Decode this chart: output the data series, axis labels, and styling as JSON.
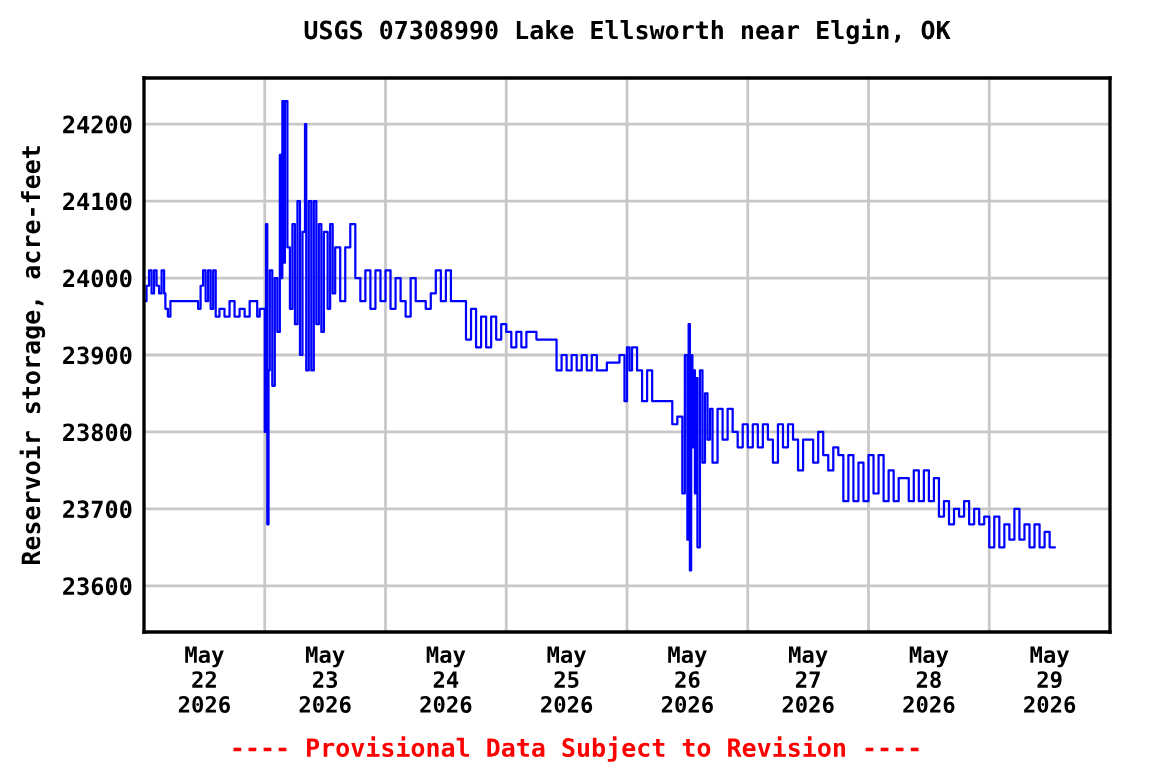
{
  "chart_data": {
    "type": "step",
    "title": "USGS 07308990 Lake Ellsworth near Elgin, OK",
    "ylabel": "Reservoir storage, acre-feet",
    "annotations": [
      "---- Provisional Data Subject to Revision ----"
    ],
    "x": [
      "2026-05-22T00:00",
      "2026-05-22T00:30",
      "2026-05-22T01:00",
      "2026-05-22T01:30",
      "2026-05-22T02:00",
      "2026-05-22T02:30",
      "2026-05-22T03:00",
      "2026-05-22T03:30",
      "2026-05-22T04:00",
      "2026-05-22T04:15",
      "2026-05-22T04:45",
      "2026-05-22T05:15",
      "2026-05-22T08:00",
      "2026-05-22T10:45",
      "2026-05-22T11:15",
      "2026-05-22T11:45",
      "2026-05-22T12:15",
      "2026-05-22T12:45",
      "2026-05-22T13:15",
      "2026-05-22T13:45",
      "2026-05-22T14:15",
      "2026-05-22T15:00",
      "2026-05-22T16:00",
      "2026-05-22T17:00",
      "2026-05-22T18:00",
      "2026-05-22T19:00",
      "2026-05-22T20:00",
      "2026-05-22T21:00",
      "2026-05-22T22:30",
      "2026-05-22T23:00",
      "2026-05-23T00:00",
      "2026-05-23T00:15",
      "2026-05-23T00:30",
      "2026-05-23T00:45",
      "2026-05-23T01:00",
      "2026-05-23T01:30",
      "2026-05-23T02:00",
      "2026-05-23T02:30",
      "2026-05-23T03:00",
      "2026-05-23T03:15",
      "2026-05-23T03:30",
      "2026-05-23T03:45",
      "2026-05-23T04:00",
      "2026-05-23T04:30",
      "2026-05-23T05:00",
      "2026-05-23T05:30",
      "2026-05-23T06:00",
      "2026-05-23T06:30",
      "2026-05-23T07:00",
      "2026-05-23T07:30",
      "2026-05-23T08:00",
      "2026-05-23T08:15",
      "2026-05-23T08:45",
      "2026-05-23T09:15",
      "2026-05-23T09:45",
      "2026-05-23T10:15",
      "2026-05-23T10:45",
      "2026-05-23T11:15",
      "2026-05-23T11:45",
      "2026-05-23T12:30",
      "2026-05-23T13:00",
      "2026-05-23T13:30",
      "2026-05-23T14:00",
      "2026-05-23T15:00",
      "2026-05-23T16:00",
      "2026-05-23T17:00",
      "2026-05-23T18:00",
      "2026-05-23T19:00",
      "2026-05-23T20:00",
      "2026-05-23T21:00",
      "2026-05-23T22:00",
      "2026-05-23T23:00",
      "2026-05-24T00:00",
      "2026-05-24T01:00",
      "2026-05-24T02:00",
      "2026-05-24T03:00",
      "2026-05-24T04:00",
      "2026-05-24T05:00",
      "2026-05-24T06:00",
      "2026-05-24T08:00",
      "2026-05-24T09:00",
      "2026-05-24T10:00",
      "2026-05-24T11:00",
      "2026-05-24T12:00",
      "2026-05-24T13:00",
      "2026-05-24T16:00",
      "2026-05-24T17:00",
      "2026-05-24T18:00",
      "2026-05-24T19:00",
      "2026-05-24T20:00",
      "2026-05-24T21:00",
      "2026-05-24T22:00",
      "2026-05-24T23:00",
      "2026-05-25T00:00",
      "2026-05-25T01:00",
      "2026-05-25T02:00",
      "2026-05-25T03:00",
      "2026-05-25T04:00",
      "2026-05-25T06:00",
      "2026-05-25T10:00",
      "2026-05-25T11:00",
      "2026-05-25T12:00",
      "2026-05-25T13:00",
      "2026-05-25T14:00",
      "2026-05-25T15:00",
      "2026-05-25T16:00",
      "2026-05-25T17:00",
      "2026-05-25T18:00",
      "2026-05-25T20:00",
      "2026-05-25T22:30",
      "2026-05-25T23:30",
      "2026-05-26T00:00",
      "2026-05-26T00:30",
      "2026-05-26T01:00",
      "2026-05-26T02:00",
      "2026-05-26T03:00",
      "2026-05-26T04:00",
      "2026-05-26T05:00",
      "2026-05-26T09:00",
      "2026-05-26T10:00",
      "2026-05-26T11:00",
      "2026-05-26T11:30",
      "2026-05-26T12:00",
      "2026-05-26T12:15",
      "2026-05-26T12:30",
      "2026-05-26T12:45",
      "2026-05-26T13:00",
      "2026-05-26T13:15",
      "2026-05-26T13:30",
      "2026-05-26T13:45",
      "2026-05-26T14:00",
      "2026-05-26T14:30",
      "2026-05-26T15:00",
      "2026-05-26T15:30",
      "2026-05-26T16:00",
      "2026-05-26T16:30",
      "2026-05-26T17:00",
      "2026-05-26T18:00",
      "2026-05-26T19:00",
      "2026-05-26T20:00",
      "2026-05-26T21:00",
      "2026-05-26T22:00",
      "2026-05-26T23:00",
      "2026-05-27T00:00",
      "2026-05-27T01:00",
      "2026-05-27T02:00",
      "2026-05-27T03:00",
      "2026-05-27T04:00",
      "2026-05-27T05:00",
      "2026-05-27T06:00",
      "2026-05-27T07:00",
      "2026-05-27T08:00",
      "2026-05-27T09:00",
      "2026-05-27T10:00",
      "2026-05-27T11:00",
      "2026-05-27T13:00",
      "2026-05-27T14:00",
      "2026-05-27T15:00",
      "2026-05-27T16:00",
      "2026-05-27T17:00",
      "2026-05-27T18:00",
      "2026-05-27T19:00",
      "2026-05-27T20:00",
      "2026-05-27T21:00",
      "2026-05-27T22:00",
      "2026-05-27T23:00",
      "2026-05-28T00:00",
      "2026-05-28T01:00",
      "2026-05-28T02:00",
      "2026-05-28T03:00",
      "2026-05-28T04:00",
      "2026-05-28T05:00",
      "2026-05-28T06:00",
      "2026-05-28T08:00",
      "2026-05-28T09:00",
      "2026-05-28T10:00",
      "2026-05-28T11:00",
      "2026-05-28T12:00",
      "2026-05-28T13:00",
      "2026-05-28T14:00",
      "2026-05-28T15:00",
      "2026-05-28T16:00",
      "2026-05-28T17:00",
      "2026-05-28T18:00",
      "2026-05-28T19:00",
      "2026-05-28T20:00",
      "2026-05-28T21:00",
      "2026-05-28T22:00",
      "2026-05-28T23:00",
      "2026-05-29T00:00",
      "2026-05-29T01:00",
      "2026-05-29T02:00",
      "2026-05-29T03:00",
      "2026-05-29T04:00",
      "2026-05-29T05:00",
      "2026-05-29T06:00",
      "2026-05-29T07:00",
      "2026-05-29T08:00",
      "2026-05-29T09:00",
      "2026-05-29T10:00",
      "2026-05-29T11:00",
      "2026-05-29T12:00",
      "2026-05-29T13:00"
    ],
    "series": [
      {
        "color": "#0000ff",
        "values": [
          23970,
          23990,
          24010,
          23980,
          24010,
          23990,
          23980,
          24010,
          23980,
          23960,
          23950,
          23970,
          23970,
          23960,
          23990,
          24010,
          23970,
          24010,
          23960,
          24010,
          23950,
          23960,
          23950,
          23970,
          23950,
          23960,
          23950,
          23970,
          23950,
          23960,
          23800,
          24070,
          23680,
          23880,
          24010,
          23860,
          24000,
          23930,
          24160,
          24000,
          24230,
          24020,
          24230,
          24040,
          23960,
          24070,
          23940,
          24100,
          23900,
          24060,
          24200,
          23880,
          24100,
          23880,
          24100,
          23940,
          24070,
          23930,
          24060,
          23960,
          24070,
          23980,
          24040,
          23970,
          24040,
          24070,
          24000,
          23970,
          24010,
          23960,
          24010,
          23970,
          24010,
          23960,
          24000,
          23970,
          23950,
          24000,
          23970,
          23960,
          23980,
          24010,
          23970,
          24010,
          23970,
          23920,
          23960,
          23910,
          23950,
          23910,
          23950,
          23920,
          23940,
          23930,
          23910,
          23930,
          23910,
          23930,
          23920,
          23880,
          23900,
          23880,
          23900,
          23880,
          23900,
          23880,
          23900,
          23880,
          23890,
          23900,
          23840,
          23910,
          23880,
          23910,
          23880,
          23840,
          23880,
          23840,
          23810,
          23820,
          23720,
          23900,
          23660,
          23940,
          23620,
          23900,
          23780,
          23880,
          23720,
          23870,
          23650,
          23880,
          23760,
          23850,
          23790,
          23830,
          23760,
          23830,
          23790,
          23830,
          23800,
          23780,
          23810,
          23780,
          23810,
          23780,
          23810,
          23790,
          23760,
          23810,
          23780,
          23810,
          23790,
          23750,
          23790,
          23760,
          23800,
          23770,
          23750,
          23780,
          23770,
          23710,
          23770,
          23710,
          23760,
          23710,
          23770,
          23720,
          23770,
          23710,
          23750,
          23710,
          23740,
          23710,
          23750,
          23710,
          23750,
          23710,
          23740,
          23690,
          23710,
          23680,
          23700,
          23690,
          23710,
          23680,
          23700,
          23680,
          23690,
          23650,
          23690,
          23650,
          23680,
          23660,
          23700,
          23660,
          23680,
          23650,
          23680,
          23650,
          23670,
          23650,
          23650
        ]
      }
    ],
    "xlim": [
      "2026-05-22T00:00",
      "2026-05-30T00:00"
    ],
    "xticks": [
      {
        "value": "2026-05-22T12:00",
        "label": "May\n22\n2026"
      },
      {
        "value": "2026-05-23T00:00",
        "label": null
      },
      {
        "value": "2026-05-23T12:00",
        "label": "May\n23\n2026"
      },
      {
        "value": "2026-05-24T00:00",
        "label": null
      },
      {
        "value": "2026-05-24T12:00",
        "label": "May\n24\n2026"
      },
      {
        "value": "2026-05-25T00:00",
        "label": null
      },
      {
        "value": "2026-05-25T12:00",
        "label": "May\n25\n2026"
      },
      {
        "value": "2026-05-26T00:00",
        "label": null
      },
      {
        "value": "2026-05-26T12:00",
        "label": "May\n26\n2026"
      },
      {
        "value": "2026-05-27T00:00",
        "label": null
      },
      {
        "value": "2026-05-27T12:00",
        "label": "May\n27\n2026"
      },
      {
        "value": "2026-05-28T00:00",
        "label": null
      },
      {
        "value": "2026-05-28T12:00",
        "label": "May\n28\n2026"
      },
      {
        "value": "2026-05-29T00:00",
        "label": null
      },
      {
        "value": "2026-05-29T12:00",
        "label": "May\n29\n2026"
      }
    ],
    "ylim": [
      23540,
      24260
    ],
    "yticks": [
      23600,
      23700,
      23800,
      23900,
      24000,
      24100,
      24200
    ],
    "grid": true
  }
}
